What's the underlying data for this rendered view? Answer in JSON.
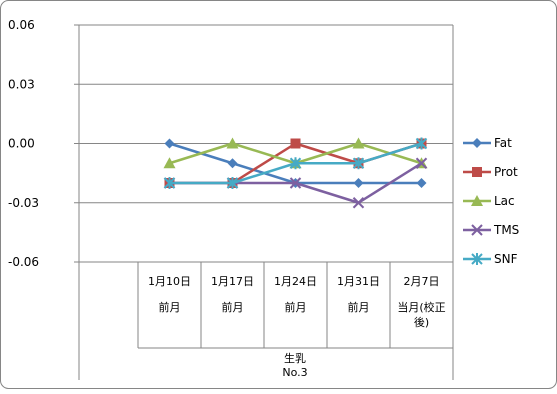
{
  "chart_data": {
    "type": "line",
    "title": "",
    "xlabel": "",
    "ylabel": "",
    "ylim": [
      -0.06,
      0.06
    ],
    "yticks": [
      "0.06",
      "0.03",
      "0.00",
      "-0.03",
      "-0.06"
    ],
    "ytick_values": [
      0.06,
      0.03,
      0.0,
      -0.03,
      -0.06
    ],
    "grid": "horizontal major gridlines",
    "legend_position": "right",
    "categories": [
      {
        "date": "1月10日",
        "sub": [
          "前月"
        ]
      },
      {
        "date": "1月17日",
        "sub": [
          "前月"
        ]
      },
      {
        "date": "1月24日",
        "sub": [
          "前月"
        ]
      },
      {
        "date": "1月31日",
        "sub": [
          "前月"
        ]
      },
      {
        "date": "2月7日",
        "sub": [
          "当月(校正",
          "後)"
        ]
      }
    ],
    "group_label": [
      "生乳",
      "No.3"
    ],
    "series": [
      {
        "name": "Fat",
        "color": "#4a7ebb",
        "marker": "diamond",
        "values": [
          0.0,
          -0.01,
          -0.02,
          -0.02,
          -0.02
        ]
      },
      {
        "name": "Prot",
        "color": "#be4b48",
        "marker": "square",
        "values": [
          -0.02,
          -0.02,
          0.0,
          -0.01,
          0.0
        ]
      },
      {
        "name": "Lac",
        "color": "#98b954",
        "marker": "triangle",
        "values": [
          -0.01,
          0.0,
          -0.01,
          0.0,
          -0.01
        ]
      },
      {
        "name": "TMS",
        "color": "#7d60a0",
        "marker": "x",
        "values": [
          -0.02,
          -0.02,
          -0.02,
          -0.03,
          -0.01
        ]
      },
      {
        "name": "SNF",
        "color": "#46aac5",
        "marker": "star",
        "values": [
          -0.02,
          -0.02,
          -0.01,
          -0.01,
          0.0
        ]
      }
    ]
  }
}
